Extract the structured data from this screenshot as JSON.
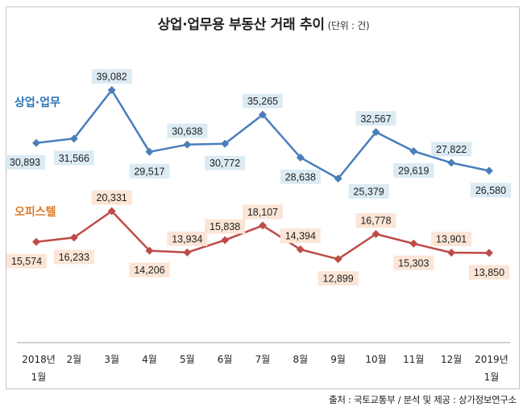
{
  "title": "상업·업무용 부동산 거래 추이",
  "unit_note": "(단위 : 건)",
  "source": "출처 : 국토교통부 / 분석 및 제공 : 상가정보연구소",
  "chart_data": {
    "type": "line",
    "title": "상업·업무용 부동산 거래 추이 (단위 : 건)",
    "xlabel": "",
    "ylabel": "",
    "grid": false,
    "legend": "inline-left",
    "categories": [
      [
        "2018년",
        "1월"
      ],
      [
        "2월"
      ],
      [
        "3월"
      ],
      [
        "4월"
      ],
      [
        "5월"
      ],
      [
        "6월"
      ],
      [
        "7월"
      ],
      [
        "8월"
      ],
      [
        "9월"
      ],
      [
        "10월"
      ],
      [
        "11월"
      ],
      [
        "12월"
      ],
      [
        "2019년",
        "1월"
      ]
    ],
    "series": [
      {
        "name": "상업·업무",
        "color": "#4a7ebb",
        "label_bg": "#dcebf3",
        "name_color": "#2e75b6",
        "values": [
          30893,
          31566,
          39082,
          29517,
          30638,
          30772,
          35265,
          28638,
          25379,
          32567,
          29619,
          27822,
          26580
        ],
        "labels": [
          "30,893",
          "31,566",
          "39,082",
          "29,517",
          "30,638",
          "30,772",
          "35,265",
          "28,638",
          "25,379",
          "32,567",
          "29,619",
          "27,822",
          "26,580"
        ],
        "label_pos": [
          "below",
          "below",
          "above",
          "below",
          "above",
          "below",
          "above",
          "below",
          "below-right",
          "above",
          "below",
          "above",
          "below"
        ]
      },
      {
        "name": "오피스텔",
        "color": "#be4b48",
        "label_bg": "#fbe5d6",
        "name_color": "#e07a28",
        "values": [
          15574,
          16233,
          20331,
          14206,
          13934,
          15838,
          18107,
          14394,
          12899,
          16778,
          15303,
          13901,
          13850
        ],
        "labels": [
          "15,574",
          "16,233",
          "20,331",
          "14,206",
          "13,934",
          "15,838",
          "18,107",
          "14,394",
          "12,899",
          "16,778",
          "15,303",
          "13,901",
          "13,850"
        ],
        "label_pos": [
          "below",
          "below",
          "above",
          "below",
          "above",
          "above",
          "above",
          "above",
          "below",
          "above",
          "below",
          "above",
          "below"
        ]
      }
    ]
  }
}
